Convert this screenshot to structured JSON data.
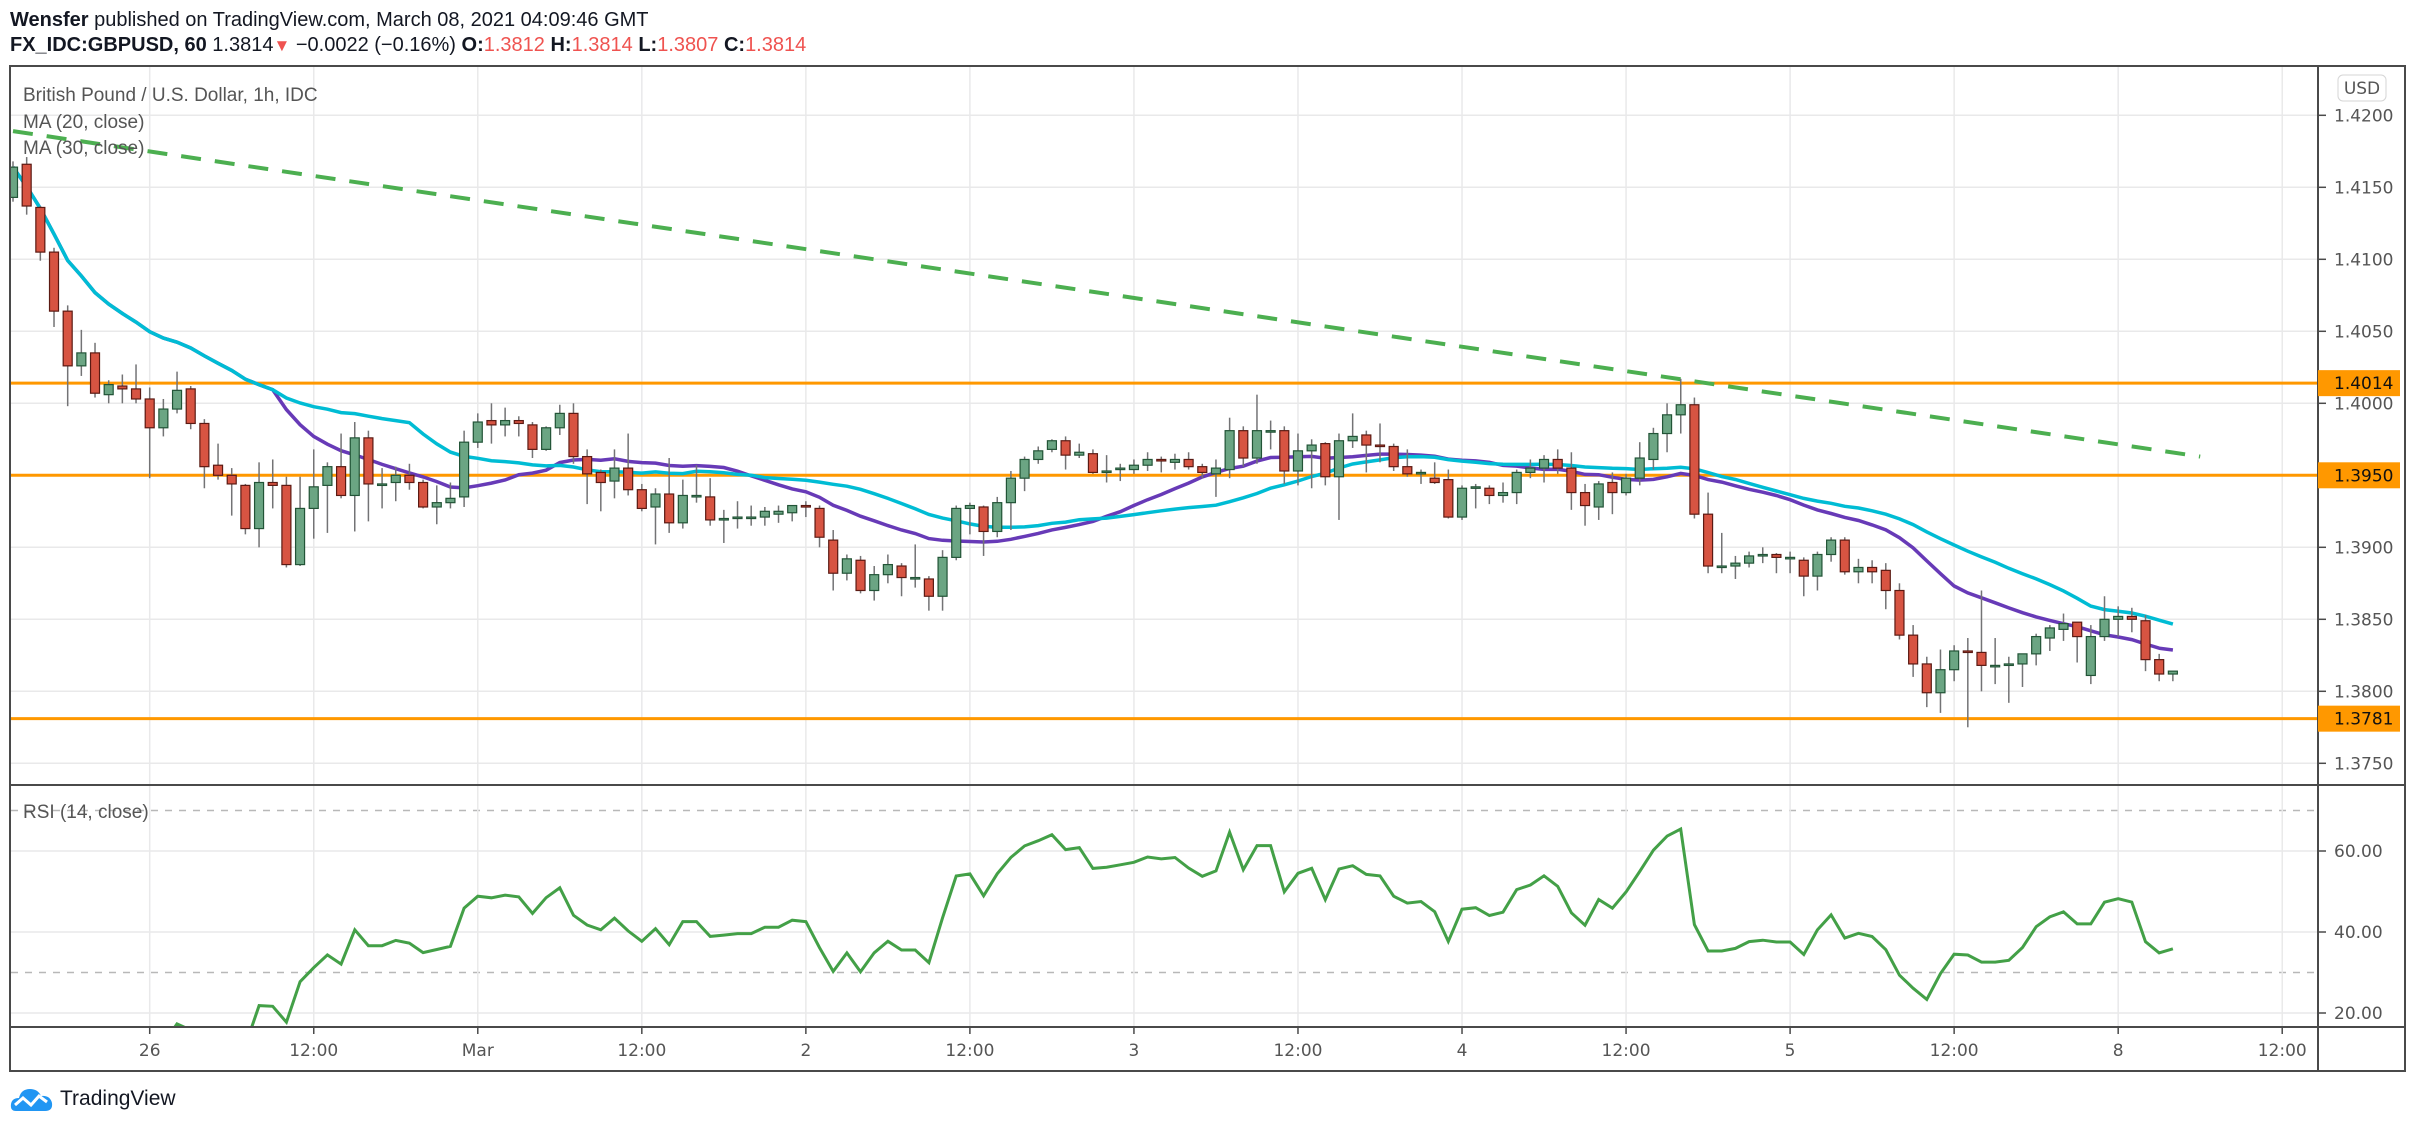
{
  "header": {
    "author": "Wensfer",
    "published_text": "published on TradingView.com, March 08, 2021 04:09:46 GMT",
    "symbol": "FX_IDC:GBPUSD, 60",
    "last_price": "1.3814",
    "change_icon": "triangle-down-icon",
    "change": "−0.0022 (−0.16%)",
    "o_label": "O:",
    "o_value": "1.3812",
    "h_label": "H:",
    "h_value": "1.3814",
    "l_label": "L:",
    "l_value": "1.3807",
    "c_label": "C:",
    "c_value": "1.3814"
  },
  "footer": {
    "brand": "TradingView",
    "logo_icon": "tradingview-cloud-icon"
  },
  "chart_data": {
    "type": "candlestick",
    "title": "British Pound / U.S. Dollar, 1h, IDC",
    "currency_button": "USD",
    "colors": {
      "up": "#6ba583",
      "up_border": "#225437",
      "down": "#d75442",
      "down_border": "#5b1a13",
      "wick": "#737375",
      "ma20": "#673ab7",
      "ma30": "#00bcd4",
      "levels": "#ff9800",
      "trendline": "#4caf50",
      "rsi": "#43a047",
      "grid": "#e9e9ea"
    },
    "indicators": [
      {
        "label": "MA (20, close)",
        "period": 20,
        "color_key": "ma20"
      },
      {
        "label": "MA (30, close)",
        "period": 30,
        "color_key": "ma30"
      }
    ],
    "ylim": [
      1.3725,
      1.4225
    ],
    "price_ticks": [
      "1.4200",
      "1.4150",
      "1.4100",
      "1.4050",
      "1.4000",
      "1.3900",
      "1.3850",
      "1.3800",
      "1.3750"
    ],
    "levels": [
      {
        "price": 1.4014,
        "label": "1.4014"
      },
      {
        "price": 1.395,
        "label": "1.3950"
      },
      {
        "price": 1.3781,
        "label": "1.3781"
      }
    ],
    "trendline": {
      "style": "dashed",
      "points": [
        [
          "2021-02-25T14:00",
          1.4189
        ],
        [
          "2021-03-08T06:00",
          1.3963
        ]
      ]
    },
    "x_ticks": [
      {
        "label": "26",
        "t": "2021-02-26T00:00"
      },
      {
        "label": "12:00",
        "t": "2021-02-26T12:00"
      },
      {
        "label": "Mar",
        "t": "2021-03-01T00:00"
      },
      {
        "label": "12:00",
        "t": "2021-03-01T12:00"
      },
      {
        "label": "2",
        "t": "2021-03-02T00:00"
      },
      {
        "label": "12:00",
        "t": "2021-03-02T12:00"
      },
      {
        "label": "3",
        "t": "2021-03-03T00:00"
      },
      {
        "label": "12:00",
        "t": "2021-03-03T12:00"
      },
      {
        "label": "4",
        "t": "2021-03-04T00:00"
      },
      {
        "label": "12:00",
        "t": "2021-03-04T12:00"
      },
      {
        "label": "5",
        "t": "2021-03-05T00:00"
      },
      {
        "label": "12:00",
        "t": "2021-03-05T12:00"
      },
      {
        "label": "8",
        "t": "2021-03-08T00:00"
      },
      {
        "label": "12:00",
        "t": "2021-03-08T12:00"
      }
    ],
    "rsi": {
      "label": "RSI (14, close)",
      "period": 14,
      "ticks": [
        "60.00",
        "40.00",
        "20.00"
      ],
      "bands": [
        70,
        30
      ],
      "ylim": [
        15,
        75
      ]
    },
    "candles": {
      "start": "2021-02-25T14:00",
      "interval": "1h",
      "ohlc": [
        [
          1.4143,
          1.4168,
          1.414,
          1.4164
        ],
        [
          1.4166,
          1.4171,
          1.4131,
          1.4137
        ],
        [
          1.4136,
          1.4137,
          1.4099,
          1.4105
        ],
        [
          1.4105,
          1.4108,
          1.4053,
          1.4064
        ],
        [
          1.4064,
          1.4068,
          1.3998,
          1.4026
        ],
        [
          1.4026,
          1.4051,
          1.4019,
          1.4035
        ],
        [
          1.4035,
          1.4042,
          1.4004,
          1.4007
        ],
        [
          1.4006,
          1.4016,
          1.4,
          1.4013
        ],
        [
          1.4012,
          1.402,
          1.4,
          1.401
        ],
        [
          1.401,
          1.4027,
          1.4,
          1.4003
        ],
        [
          1.4003,
          1.4011,
          1.3948,
          1.3983
        ],
        [
          1.3983,
          1.4003,
          1.3977,
          1.3996
        ],
        [
          1.3996,
          1.4022,
          1.3993,
          1.4009
        ],
        [
          1.401,
          1.4012,
          1.3982,
          1.3986
        ],
        [
          1.3986,
          1.3989,
          1.3941,
          1.3956
        ],
        [
          1.3957,
          1.3972,
          1.3947,
          1.395
        ],
        [
          1.395,
          1.3955,
          1.3922,
          1.3944
        ],
        [
          1.3943,
          1.3944,
          1.3909,
          1.3913
        ],
        [
          1.3913,
          1.3959,
          1.39,
          1.3945
        ],
        [
          1.3945,
          1.3961,
          1.3927,
          1.3943
        ],
        [
          1.3943,
          1.3949,
          1.3886,
          1.3888
        ],
        [
          1.3888,
          1.3949,
          1.3887,
          1.3927
        ],
        [
          1.3927,
          1.3968,
          1.3906,
          1.3942
        ],
        [
          1.3943,
          1.3959,
          1.391,
          1.3956
        ],
        [
          1.3956,
          1.3979,
          1.3934,
          1.3936
        ],
        [
          1.3936,
          1.3987,
          1.3911,
          1.3976
        ],
        [
          1.3976,
          1.3981,
          1.3918,
          1.3944
        ],
        [
          1.3944,
          1.3955,
          1.3927,
          1.3944
        ],
        [
          1.3945,
          1.3956,
          1.3932,
          1.395
        ],
        [
          1.395,
          1.3958,
          1.394,
          1.3945
        ],
        [
          1.3945,
          1.3947,
          1.3927,
          1.3928
        ],
        [
          1.3928,
          1.3943,
          1.3916,
          1.3931
        ],
        [
          1.3931,
          1.3945,
          1.3927,
          1.3934
        ],
        [
          1.3935,
          1.3981,
          1.3928,
          1.3973
        ],
        [
          1.3973,
          1.3993,
          1.3969,
          1.3987
        ],
        [
          1.3988,
          1.4,
          1.3972,
          1.3985
        ],
        [
          1.3985,
          1.3997,
          1.3977,
          1.3988
        ],
        [
          1.3988,
          1.3991,
          1.3977,
          1.3986
        ],
        [
          1.3985,
          1.3987,
          1.3962,
          1.3968
        ],
        [
          1.3968,
          1.3984,
          1.3967,
          1.3983
        ],
        [
          1.3983,
          1.3999,
          1.3978,
          1.3993
        ],
        [
          1.3993,
          1.4,
          1.3958,
          1.3963
        ],
        [
          1.3963,
          1.3968,
          1.393,
          1.3951
        ],
        [
          1.3952,
          1.3954,
          1.3925,
          1.3945
        ],
        [
          1.3946,
          1.3968,
          1.3934,
          1.3955
        ],
        [
          1.3955,
          1.3979,
          1.3936,
          1.394
        ],
        [
          1.394,
          1.3944,
          1.3925,
          1.3927
        ],
        [
          1.3928,
          1.3941,
          1.3902,
          1.3937
        ],
        [
          1.3937,
          1.3962,
          1.391,
          1.3917
        ],
        [
          1.3917,
          1.3947,
          1.3913,
          1.3936
        ],
        [
          1.3936,
          1.3957,
          1.3931,
          1.3936
        ],
        [
          1.3935,
          1.3948,
          1.3915,
          1.3919
        ],
        [
          1.3919,
          1.3926,
          1.3903,
          1.392
        ],
        [
          1.3921,
          1.3932,
          1.3913,
          1.3921
        ],
        [
          1.3921,
          1.3929,
          1.3915,
          1.3921
        ],
        [
          1.3921,
          1.3928,
          1.3915,
          1.3925
        ],
        [
          1.3923,
          1.3929,
          1.3917,
          1.3925
        ],
        [
          1.3924,
          1.3929,
          1.3918,
          1.3929
        ],
        [
          1.3929,
          1.3932,
          1.3921,
          1.3928
        ],
        [
          1.3927,
          1.3929,
          1.39,
          1.3907
        ],
        [
          1.3905,
          1.3912,
          1.387,
          1.3882
        ],
        [
          1.3882,
          1.3895,
          1.3877,
          1.3892
        ],
        [
          1.3891,
          1.3894,
          1.3868,
          1.387
        ],
        [
          1.387,
          1.3887,
          1.3863,
          1.3881
        ],
        [
          1.3881,
          1.3895,
          1.3875,
          1.3888
        ],
        [
          1.3887,
          1.3889,
          1.3866,
          1.3879
        ],
        [
          1.3879,
          1.3902,
          1.3872,
          1.3879
        ],
        [
          1.3878,
          1.388,
          1.3856,
          1.3866
        ],
        [
          1.3866,
          1.3898,
          1.3856,
          1.3893
        ],
        [
          1.3893,
          1.3929,
          1.3891,
          1.3927
        ],
        [
          1.3927,
          1.3931,
          1.3909,
          1.3929
        ],
        [
          1.3928,
          1.3929,
          1.3894,
          1.3911
        ],
        [
          1.3911,
          1.3935,
          1.3907,
          1.3931
        ],
        [
          1.3931,
          1.3953,
          1.3912,
          1.3948
        ],
        [
          1.3948,
          1.3963,
          1.3939,
          1.3961
        ],
        [
          1.3961,
          1.397,
          1.3958,
          1.3967
        ],
        [
          1.3968,
          1.3975,
          1.3966,
          1.3974
        ],
        [
          1.3974,
          1.3977,
          1.3954,
          1.3964
        ],
        [
          1.3964,
          1.3972,
          1.3962,
          1.3966
        ],
        [
          1.3965,
          1.3968,
          1.3951,
          1.3952
        ],
        [
          1.3952,
          1.3964,
          1.3945,
          1.3953
        ],
        [
          1.3954,
          1.3958,
          1.3946,
          1.3955
        ],
        [
          1.3954,
          1.3961,
          1.3951,
          1.3957
        ],
        [
          1.3957,
          1.3966,
          1.3953,
          1.3961
        ],
        [
          1.3961,
          1.3963,
          1.3952,
          1.396
        ],
        [
          1.3959,
          1.3965,
          1.3954,
          1.3961
        ],
        [
          1.3961,
          1.3966,
          1.3954,
          1.3956
        ],
        [
          1.3956,
          1.3958,
          1.3948,
          1.3952
        ],
        [
          1.3951,
          1.3961,
          1.3935,
          1.3955
        ],
        [
          1.3954,
          1.399,
          1.3948,
          1.3981
        ],
        [
          1.3981,
          1.3984,
          1.3956,
          1.3962
        ],
        [
          1.3962,
          1.4006,
          1.3958,
          1.3981
        ],
        [
          1.3981,
          1.3988,
          1.3968,
          1.3981
        ],
        [
          1.3981,
          1.3984,
          1.3944,
          1.3953
        ],
        [
          1.3953,
          1.3979,
          1.3943,
          1.3967
        ],
        [
          1.3967,
          1.3975,
          1.3941,
          1.3971
        ],
        [
          1.3972,
          1.3973,
          1.3943,
          1.3949
        ],
        [
          1.3949,
          1.3979,
          1.3919,
          1.3974
        ],
        [
          1.3974,
          1.3993,
          1.3969,
          1.3977
        ],
        [
          1.3978,
          1.3981,
          1.3952,
          1.3971
        ],
        [
          1.3971,
          1.3986,
          1.3959,
          1.397
        ],
        [
          1.397,
          1.3972,
          1.3953,
          1.3956
        ],
        [
          1.3956,
          1.3968,
          1.3949,
          1.3951
        ],
        [
          1.3952,
          1.3954,
          1.3944,
          1.3952
        ],
        [
          1.3948,
          1.3959,
          1.3944,
          1.3945
        ],
        [
          1.3947,
          1.3954,
          1.392,
          1.3921
        ],
        [
          1.3921,
          1.3943,
          1.3919,
          1.3941
        ],
        [
          1.3941,
          1.3944,
          1.3927,
          1.3942
        ],
        [
          1.3941,
          1.3943,
          1.393,
          1.3936
        ],
        [
          1.3936,
          1.3945,
          1.3931,
          1.3938
        ],
        [
          1.3938,
          1.3954,
          1.393,
          1.3952
        ],
        [
          1.3952,
          1.3961,
          1.3948,
          1.3955
        ],
        [
          1.3955,
          1.3964,
          1.3945,
          1.3961
        ],
        [
          1.3961,
          1.3968,
          1.3951,
          1.3955
        ],
        [
          1.3955,
          1.3966,
          1.3926,
          1.3938
        ],
        [
          1.3938,
          1.3944,
          1.3915,
          1.3929
        ],
        [
          1.3928,
          1.3946,
          1.3919,
          1.3944
        ],
        [
          1.3945,
          1.3952,
          1.3923,
          1.3938
        ],
        [
          1.3938,
          1.3951,
          1.3936,
          1.3948
        ],
        [
          1.3948,
          1.3973,
          1.3943,
          1.3962
        ],
        [
          1.3961,
          1.3983,
          1.3954,
          1.3979
        ],
        [
          1.3979,
          1.4,
          1.3966,
          1.3992
        ],
        [
          1.3992,
          1.4017,
          1.3979,
          1.3999
        ],
        [
          1.3999,
          1.4004,
          1.392,
          1.3923
        ],
        [
          1.3923,
          1.3938,
          1.3882,
          1.3887
        ],
        [
          1.3887,
          1.391,
          1.3882,
          1.3887
        ],
        [
          1.3887,
          1.3894,
          1.3878,
          1.3889
        ],
        [
          1.3889,
          1.3897,
          1.3886,
          1.3894
        ],
        [
          1.3894,
          1.39,
          1.3889,
          1.3895
        ],
        [
          1.3895,
          1.3896,
          1.3882,
          1.3893
        ],
        [
          1.3893,
          1.3897,
          1.3882,
          1.3893
        ],
        [
          1.3891,
          1.3893,
          1.3866,
          1.388
        ],
        [
          1.388,
          1.3897,
          1.387,
          1.3895
        ],
        [
          1.3895,
          1.3907,
          1.389,
          1.3905
        ],
        [
          1.3905,
          1.3907,
          1.3881,
          1.3883
        ],
        [
          1.3883,
          1.3892,
          1.3875,
          1.3886
        ],
        [
          1.3886,
          1.3891,
          1.3875,
          1.3883
        ],
        [
          1.3884,
          1.3889,
          1.3857,
          1.387
        ],
        [
          1.387,
          1.3875,
          1.3836,
          1.3839
        ],
        [
          1.3839,
          1.3846,
          1.381,
          1.3819
        ],
        [
          1.3819,
          1.3824,
          1.3789,
          1.3799
        ],
        [
          1.3799,
          1.3829,
          1.3785,
          1.3815
        ],
        [
          1.3815,
          1.3832,
          1.3807,
          1.3828
        ],
        [
          1.3828,
          1.3837,
          1.3775,
          1.3827
        ],
        [
          1.3827,
          1.387,
          1.38,
          1.3818
        ],
        [
          1.3818,
          1.3837,
          1.3805,
          1.3818
        ],
        [
          1.3818,
          1.3824,
          1.3792,
          1.3819
        ],
        [
          1.3819,
          1.3826,
          1.3803,
          1.3826
        ],
        [
          1.3826,
          1.384,
          1.3818,
          1.3838
        ],
        [
          1.3837,
          1.3846,
          1.3828,
          1.3844
        ],
        [
          1.3843,
          1.3854,
          1.3835,
          1.3847
        ],
        [
          1.3848,
          1.3847,
          1.382,
          1.3838
        ],
        [
          1.3811,
          1.3846,
          1.3805,
          1.3838
        ],
        [
          1.3838,
          1.3866,
          1.3835,
          1.385
        ],
        [
          1.385,
          1.3859,
          1.3838,
          1.3852
        ],
        [
          1.3852,
          1.3858,
          1.3841,
          1.385
        ],
        [
          1.3849,
          1.3853,
          1.3814,
          1.3822
        ],
        [
          1.3822,
          1.3826,
          1.3807,
          1.3812
        ],
        [
          1.3812,
          1.3814,
          1.3807,
          1.3814
        ]
      ]
    }
  }
}
